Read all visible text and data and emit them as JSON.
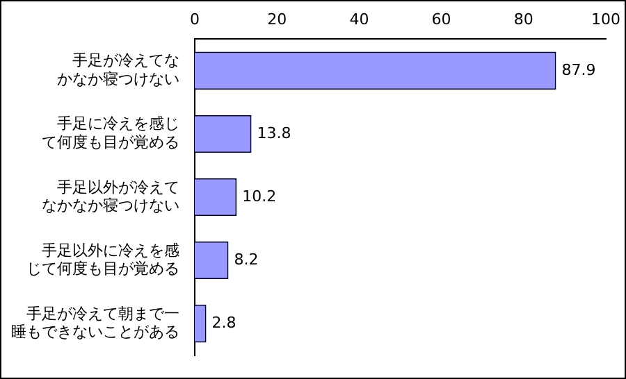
{
  "chart_data": {
    "type": "bar",
    "orientation": "horizontal",
    "categories": [
      "手足が冷えてなかなか寝つけない",
      "手足に冷えを感じて何度も目が覚める",
      "手足以外が冷えてなかなか寝つけない",
      "手足以外に冷えを感じて何度も目が覚める",
      "手足が冷えて朝まで一睡もできないことがある"
    ],
    "values": [
      87.9,
      13.8,
      10.2,
      8.2,
      2.8
    ],
    "color": "#9999ff",
    "xlim": [
      0,
      100
    ],
    "xticks": [
      0,
      20,
      40,
      60,
      80,
      100
    ],
    "data_labels": true,
    "grid": false,
    "legend": false
  }
}
